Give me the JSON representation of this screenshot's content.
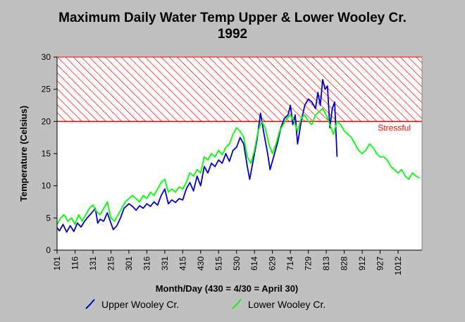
{
  "chart_data": {
    "type": "line",
    "title_line1": "Maximum Daily Water Temp Upper & Lower Wooley Cr.",
    "title_line2": "1992",
    "xlabel": "Month/Day (430 = 4/30 = April 30)",
    "ylabel": "Temperature (Celsius)",
    "ylim": [
      0,
      30
    ],
    "yticks": [
      0,
      5,
      10,
      15,
      20,
      25,
      30
    ],
    "xlim": [
      "1/1",
      "11/1"
    ],
    "xticks": [
      "101",
      "116",
      "131",
      "215",
      "301",
      "316",
      "331",
      "415",
      "430",
      "515",
      "530",
      "614",
      "629",
      "714",
      "729",
      "813",
      "828",
      "912",
      "927",
      "1012"
    ],
    "threshold": {
      "label": "Stressful",
      "min": 20,
      "max": 30,
      "color": "#ff0000"
    },
    "legend_position": "bottom",
    "series": [
      {
        "name": "Upper Wooley Cr.",
        "color": "#0000c8",
        "points": [
          [
            "1/1",
            3.5
          ],
          [
            "1/3",
            3.0
          ],
          [
            "1/6",
            4.0
          ],
          [
            "1/9",
            2.8
          ],
          [
            "1/12",
            3.8
          ],
          [
            "1/15",
            2.9
          ],
          [
            "1/18",
            4.2
          ],
          [
            "1/21",
            3.6
          ],
          [
            "1/24",
            4.5
          ],
          [
            "1/27",
            5.2
          ],
          [
            "1/30",
            5.8
          ],
          [
            "2/2",
            6.5
          ],
          [
            "2/4",
            4.2
          ],
          [
            "2/6",
            4.8
          ],
          [
            "2/9",
            4.5
          ],
          [
            "2/12",
            5.8
          ],
          [
            "2/15",
            4.2
          ],
          [
            "2/17",
            3.2
          ],
          [
            "2/20",
            3.8
          ],
          [
            "2/23",
            5.0
          ],
          [
            "2/26",
            6.5
          ],
          [
            "3/1",
            7.2
          ],
          [
            "3/4",
            6.8
          ],
          [
            "3/7",
            6.2
          ],
          [
            "3/10",
            6.9
          ],
          [
            "3/13",
            6.5
          ],
          [
            "3/16",
            7.2
          ],
          [
            "3/19",
            6.8
          ],
          [
            "3/22",
            7.5
          ],
          [
            "3/25",
            7.0
          ],
          [
            "3/28",
            8.5
          ],
          [
            "3/31",
            9.5
          ],
          [
            "4/3",
            7.2
          ],
          [
            "4/6",
            7.8
          ],
          [
            "4/9",
            7.4
          ],
          [
            "4/12",
            8.0
          ],
          [
            "4/15",
            7.8
          ],
          [
            "4/18",
            9.5
          ],
          [
            "4/21",
            10.5
          ],
          [
            "4/24",
            9.2
          ],
          [
            "4/27",
            11.5
          ],
          [
            "4/30",
            10.0
          ],
          [
            "5/3",
            13.0
          ],
          [
            "5/6",
            12.0
          ],
          [
            "5/9",
            13.5
          ],
          [
            "5/12",
            13.0
          ],
          [
            "5/15",
            14.0
          ],
          [
            "5/18",
            13.5
          ],
          [
            "5/21",
            15.0
          ],
          [
            "5/24",
            13.8
          ],
          [
            "5/27",
            15.5
          ],
          [
            "5/30",
            16.0
          ],
          [
            "6/2",
            17.5
          ],
          [
            "6/5",
            16.5
          ],
          [
            "6/8",
            13.0
          ],
          [
            "6/10",
            11.0
          ],
          [
            "6/13",
            14.0
          ],
          [
            "6/16",
            17.0
          ],
          [
            "6/19",
            21.3
          ],
          [
            "6/22",
            18.0
          ],
          [
            "6/25",
            15.0
          ],
          [
            "6/27",
            12.5
          ],
          [
            "6/30",
            14.5
          ],
          [
            "7/3",
            16.5
          ],
          [
            "7/6",
            19.0
          ],
          [
            "7/9",
            20.5
          ],
          [
            "7/12",
            21.0
          ],
          [
            "7/14",
            22.5
          ],
          [
            "7/16",
            19.5
          ],
          [
            "7/18",
            21.0
          ],
          [
            "7/20",
            16.5
          ],
          [
            "7/23",
            20.0
          ],
          [
            "7/26",
            22.5
          ],
          [
            "7/29",
            23.5
          ],
          [
            "8/1",
            23.0
          ],
          [
            "8/4",
            22.0
          ],
          [
            "8/6",
            24.5
          ],
          [
            "8/8",
            22.5
          ],
          [
            "8/10",
            26.5
          ],
          [
            "8/12",
            25.0
          ],
          [
            "8/14",
            25.5
          ],
          [
            "8/16",
            19.0
          ],
          [
            "8/18",
            22.0
          ],
          [
            "8/20",
            23.0
          ],
          [
            "8/22",
            14.5
          ]
        ]
      },
      {
        "name": "Lower Wooley Cr.",
        "color": "#00ff00",
        "points": [
          [
            "1/1",
            4.0
          ],
          [
            "1/4",
            5.0
          ],
          [
            "1/7",
            5.5
          ],
          [
            "1/10",
            4.5
          ],
          [
            "1/13",
            5.0
          ],
          [
            "1/16",
            4.0
          ],
          [
            "1/19",
            5.5
          ],
          [
            "1/22",
            4.5
          ],
          [
            "1/25",
            5.5
          ],
          [
            "1/28",
            6.5
          ],
          [
            "1/31",
            7.0
          ],
          [
            "2/3",
            6.0
          ],
          [
            "2/6",
            5.5
          ],
          [
            "2/9",
            6.5
          ],
          [
            "2/12",
            7.5
          ],
          [
            "2/15",
            5.0
          ],
          [
            "2/18",
            4.5
          ],
          [
            "2/21",
            5.5
          ],
          [
            "2/24",
            6.5
          ],
          [
            "2/27",
            7.5
          ],
          [
            "3/1",
            8.0
          ],
          [
            "3/4",
            8.5
          ],
          [
            "3/7",
            8.0
          ],
          [
            "3/10",
            7.5
          ],
          [
            "3/13",
            8.5
          ],
          [
            "3/16",
            8.0
          ],
          [
            "3/19",
            9.0
          ],
          [
            "3/22",
            8.5
          ],
          [
            "3/25",
            9.5
          ],
          [
            "3/28",
            10.5
          ],
          [
            "3/31",
            11.0
          ],
          [
            "4/3",
            9.0
          ],
          [
            "4/6",
            9.5
          ],
          [
            "4/9",
            9.0
          ],
          [
            "4/12",
            9.8
          ],
          [
            "4/15",
            9.5
          ],
          [
            "4/18",
            10.5
          ],
          [
            "4/21",
            12.0
          ],
          [
            "4/24",
            11.5
          ],
          [
            "4/27",
            12.5
          ],
          [
            "4/30",
            12.0
          ],
          [
            "5/3",
            14.5
          ],
          [
            "5/6",
            14.0
          ],
          [
            "5/9",
            15.0
          ],
          [
            "5/12",
            14.5
          ],
          [
            "5/15",
            15.5
          ],
          [
            "5/18",
            14.8
          ],
          [
            "5/21",
            16.0
          ],
          [
            "5/24",
            16.5
          ],
          [
            "5/27",
            18.0
          ],
          [
            "5/30",
            19.0
          ],
          [
            "6/2",
            18.5
          ],
          [
            "6/5",
            17.5
          ],
          [
            "6/8",
            14.5
          ],
          [
            "6/11",
            13.5
          ],
          [
            "6/14",
            15.5
          ],
          [
            "6/17",
            18.5
          ],
          [
            "6/20",
            20.0
          ],
          [
            "6/23",
            19.0
          ],
          [
            "6/26",
            16.5
          ],
          [
            "6/29",
            15.0
          ],
          [
            "7/2",
            16.5
          ],
          [
            "7/5",
            18.5
          ],
          [
            "7/8",
            19.5
          ],
          [
            "7/11",
            20.5
          ],
          [
            "7/14",
            21.0
          ],
          [
            "7/17",
            20.0
          ],
          [
            "7/20",
            18.5
          ],
          [
            "7/23",
            20.5
          ],
          [
            "7/26",
            21.0
          ],
          [
            "7/29",
            20.0
          ],
          [
            "8/1",
            19.5
          ],
          [
            "8/4",
            21.0
          ],
          [
            "8/7",
            21.5
          ],
          [
            "8/10",
            22.0
          ],
          [
            "8/13",
            21.0
          ],
          [
            "8/16",
            19.5
          ],
          [
            "8/19",
            18.0
          ],
          [
            "8/22",
            20.0
          ],
          [
            "8/25",
            19.5
          ],
          [
            "8/28",
            18.5
          ],
          [
            "8/31",
            18.0
          ],
          [
            "9/3",
            17.5
          ],
          [
            "9/6",
            16.5
          ],
          [
            "9/9",
            15.5
          ],
          [
            "9/12",
            15.0
          ],
          [
            "9/15",
            15.5
          ],
          [
            "9/18",
            16.5
          ],
          [
            "9/21",
            16.0
          ],
          [
            "9/24",
            15.0
          ],
          [
            "9/27",
            14.5
          ],
          [
            "9/30",
            14.5
          ],
          [
            "10/3",
            14.0
          ],
          [
            "10/6",
            13.0
          ],
          [
            "10/9",
            12.5
          ],
          [
            "10/12",
            12.0
          ],
          [
            "10/15",
            12.5
          ],
          [
            "10/18",
            11.5
          ],
          [
            "10/21",
            11.0
          ],
          [
            "10/24",
            12.0
          ],
          [
            "10/27",
            11.5
          ],
          [
            "10/30",
            11.2
          ]
        ]
      }
    ]
  }
}
